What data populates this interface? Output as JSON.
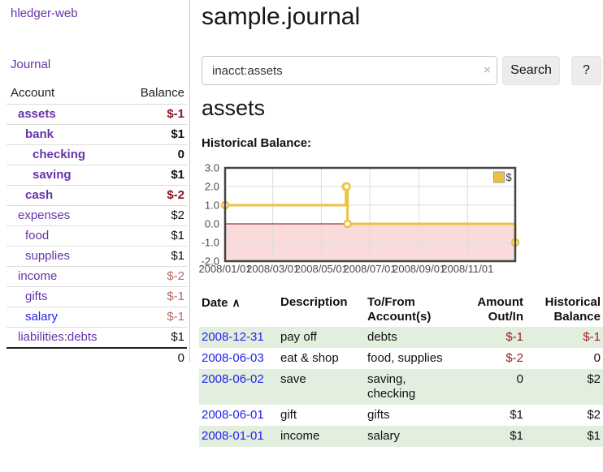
{
  "app": {
    "title": "hledger-web"
  },
  "sidebar": {
    "nav": {
      "journal_label": "Journal"
    },
    "table": {
      "account_header": "Account",
      "balance_header": "Balance"
    },
    "accounts": [
      {
        "name": "assets",
        "indent": 1,
        "bold": true,
        "balance": "$-1",
        "balance_style": "neg-strong"
      },
      {
        "name": "bank",
        "indent": 2,
        "bold": true,
        "balance": "$1"
      },
      {
        "name": "checking",
        "indent": 3,
        "bold": true,
        "balance": "0"
      },
      {
        "name": "saving",
        "indent": 3,
        "bold": true,
        "balance": "$1"
      },
      {
        "name": "cash",
        "indent": 2,
        "bold": true,
        "balance": "$-2",
        "balance_style": "neg-strong"
      },
      {
        "name": "expenses",
        "indent": 1,
        "bold": false,
        "balance": "$2"
      },
      {
        "name": "food",
        "indent": 2,
        "bold": false,
        "balance": "$1"
      },
      {
        "name": "supplies",
        "indent": 2,
        "bold": false,
        "balance": "$1"
      },
      {
        "name": "income",
        "indent": 1,
        "bold": false,
        "balance": "$-2",
        "balance_style": "neg-soft"
      },
      {
        "name": "gifts",
        "indent": 2,
        "bold": false,
        "balance": "$-1",
        "balance_style": "neg-soft"
      },
      {
        "name": "salary",
        "indent": 2,
        "bold": false,
        "balance": "$-1",
        "balance_style": "neg-soft",
        "link": "blue"
      },
      {
        "name": "liabilities:debts",
        "indent": 1,
        "bold": false,
        "balance": "$1"
      }
    ],
    "total": "0"
  },
  "main": {
    "title": "sample.journal",
    "search": {
      "value": "inacct:assets",
      "clear_icon": "×",
      "search_button": "Search",
      "help_button": "?"
    },
    "account_heading": "assets",
    "chart_heading": "Historical Balance:"
  },
  "chart_data": {
    "type": "line",
    "title": "Historical Balance:",
    "step": true,
    "xlim": [
      0,
      365
    ],
    "ylim": [
      -2,
      3
    ],
    "grid": true,
    "legend_position": "top-right",
    "series": [
      {
        "name": "$",
        "color": "#edc240",
        "points": [
          {
            "day": 0,
            "date": "2008-01-01",
            "value": 1
          },
          {
            "day": 152,
            "date": "2008-06-01",
            "value": 2
          },
          {
            "day": 153,
            "date": "2008-06-02",
            "value": 2
          },
          {
            "day": 154,
            "date": "2008-06-03",
            "value": 0
          },
          {
            "day": 365,
            "date": "2008-12-31",
            "value": -1
          }
        ]
      }
    ],
    "x_ticks": [
      {
        "day": 0,
        "label": "2008/01/01"
      },
      {
        "day": 60,
        "label": "2008/03/01"
      },
      {
        "day": 121,
        "label": "2008/05/01"
      },
      {
        "day": 182,
        "label": "2008/07/01"
      },
      {
        "day": 244,
        "label": "2008/09/01"
      },
      {
        "day": 305,
        "label": "2008/11/01"
      }
    ],
    "y_ticks": [
      {
        "value": 3,
        "label": "3.0"
      },
      {
        "value": 2,
        "label": "2.0"
      },
      {
        "value": 1,
        "label": "1.0"
      },
      {
        "value": 0,
        "label": "0.0"
      },
      {
        "value": -1,
        "label": "-1.0"
      },
      {
        "value": -2,
        "label": "-2.0"
      }
    ],
    "negative_region_color": "#f9dbdb",
    "zero_line_color": "#8b0000",
    "frame_color": "#454545",
    "gridline_color": "#dcdcdc"
  },
  "register": {
    "headers": {
      "date": "Date",
      "description": "Description",
      "accounts": "To/From Account(s)",
      "amount": "Amount Out/In",
      "balance": "Historical Balance"
    },
    "sort_arrow": "∧",
    "rows": [
      {
        "date": "2008-12-31",
        "description": "pay off",
        "accounts": "debts",
        "amount": "$-1",
        "amount_neg": true,
        "balance": "$-1",
        "balance_neg": true
      },
      {
        "date": "2008-06-03",
        "description": "eat & shop",
        "accounts": "food, supplies",
        "amount": "$-2",
        "amount_neg": true,
        "balance": "0",
        "balance_neg": false
      },
      {
        "date": "2008-06-02",
        "description": "save",
        "accounts": "saving,\nchecking",
        "amount": "0",
        "amount_neg": false,
        "balance": "$2",
        "balance_neg": false
      },
      {
        "date": "2008-06-01",
        "description": "gift",
        "accounts": "gifts",
        "amount": "$1",
        "amount_neg": false,
        "balance": "$2",
        "balance_neg": false
      },
      {
        "date": "2008-01-01",
        "description": "income",
        "accounts": "salary",
        "amount": "$1",
        "amount_neg": false,
        "balance": "$1",
        "balance_neg": false
      }
    ]
  },
  "colors": {
    "link_purple": "#6633aa",
    "link_blue": "#2222ee",
    "negative_strong": "#8e1023",
    "negative_soft": "#b06868",
    "negative_table": "#9e1a1a",
    "row_stripe_green": "#e2efdf",
    "button_background": "#ececec",
    "chart_line_gold": "#edc240",
    "chart_negative_pink": "#f9dbdb",
    "chart_zero_line": "#8b0000"
  }
}
